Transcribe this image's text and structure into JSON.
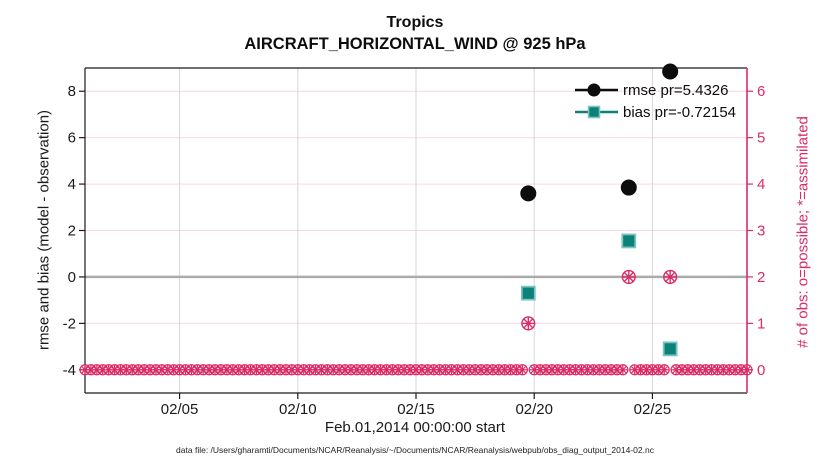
{
  "figure": {
    "title_line1": "Tropics",
    "title_line2": "AIRCRAFT_HORIZONTAL_WIND @ 925 hPa",
    "footer": "data file: /Users/gharamti/Documents/NCAR/Reanalysis/~/Documents/NCAR/Reanalysis/webpub/obs_diag_output_2014-02.nc"
  },
  "colors": {
    "rmse_black": "#0d0d0d",
    "bias_fill": "#0c8179",
    "bias_edge": "#7cc5bf",
    "obs_pink": "#da2c66",
    "grid_pink": "#f6d8e2",
    "grid_gray": "#d7d7d7",
    "zero_line_gray": "#ababab",
    "spine_black": "#1a1a1a"
  },
  "chart_data": {
    "type": "scatter",
    "title": "Tropics",
    "subtitle": "AIRCRAFT_HORIZONTAL_WIND @ 925 hPa",
    "xlabel": "Feb.01,2014 00:00:00 start",
    "ylabel_left": "rmse and bias (model - observation)",
    "ylabel_right": "# of obs: o=possible; *=assimilated",
    "x_axis": {
      "min_day": 0,
      "max_day": 28,
      "ticks": [
        {
          "day": 4,
          "label": "02/05"
        },
        {
          "day": 9,
          "label": "02/10"
        },
        {
          "day": 14,
          "label": "02/15"
        },
        {
          "day": 19,
          "label": "02/20"
        },
        {
          "day": 24,
          "label": "02/25"
        }
      ]
    },
    "y_left_axis": {
      "min": -5,
      "max": 9,
      "ticks": [
        -4,
        -2,
        0,
        2,
        4,
        6,
        8
      ]
    },
    "y_right_axis": {
      "min": -0.5,
      "max": 6.5,
      "ticks": [
        0,
        1,
        2,
        3,
        4,
        5,
        6
      ]
    },
    "zero_reference_line": 0,
    "grid": true,
    "series": [
      {
        "name": "rmse pr=5.4326",
        "marker": "filled-circle",
        "axis": "left",
        "points": [
          {
            "day": 18.75,
            "value": 3.6
          },
          {
            "day": 23.0,
            "value": 3.85
          },
          {
            "day": 24.75,
            "value": 8.85
          }
        ]
      },
      {
        "name": "bias pr=-0.72154",
        "marker": "filled-square",
        "axis": "left",
        "points": [
          {
            "day": 18.75,
            "value": -0.7
          },
          {
            "day": 23.0,
            "value": 1.55
          },
          {
            "day": 24.75,
            "value": -3.1
          }
        ]
      },
      {
        "name": "obs counts: o=possible, *=assimilated",
        "marker": "circle-asterisk",
        "axis": "right",
        "points": [
          {
            "day": 18.75,
            "value": 1
          },
          {
            "day": 23.0,
            "value": 2
          },
          {
            "day": 24.75,
            "value": 2
          }
        ],
        "baseline": {
          "value": 0,
          "start_day": 0,
          "end_day": 28,
          "step_day": 0.25,
          "skip_days": [
            18.75,
            23.0,
            24.75
          ]
        }
      }
    ],
    "legend": {
      "position": "top-right-inside",
      "entries": [
        {
          "label": "rmse pr=5.4326"
        },
        {
          "label": "bias pr=-0.72154"
        }
      ]
    }
  }
}
